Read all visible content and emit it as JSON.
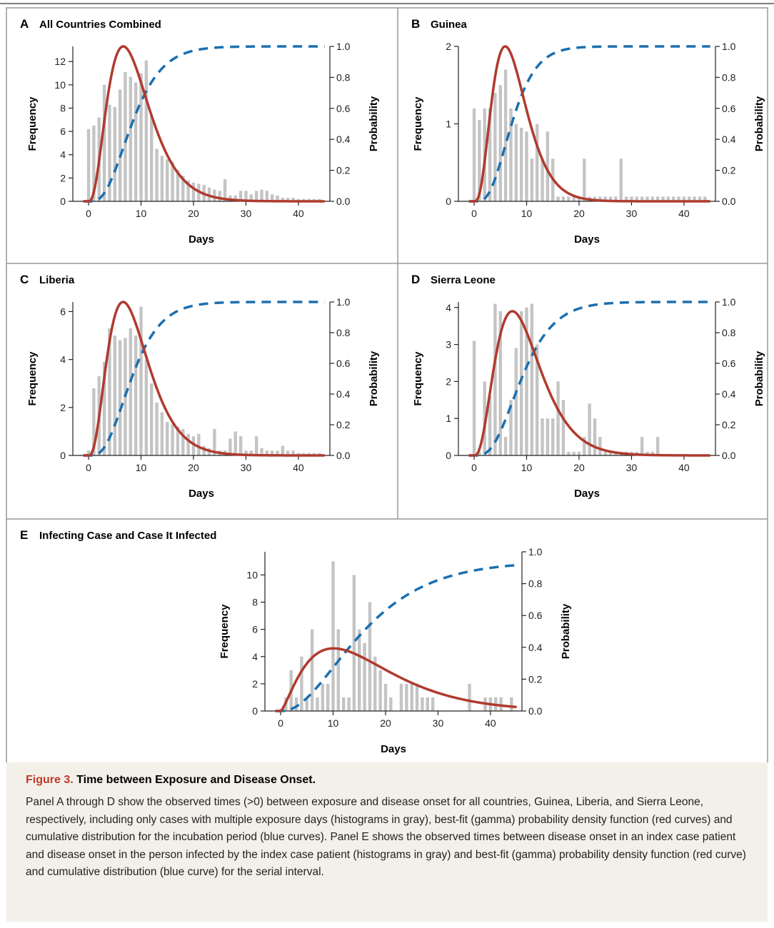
{
  "figure": {
    "label": "Figure 3.",
    "title": "Time between Exposure and Disease Onset.",
    "caption": "Panel A through D show the observed times (>0) between exposure and disease onset for all countries, Guinea, Liberia, and Sierra Leone, respectively, including only cases with multiple exposure days (histograms in gray), best-fit (gamma) probability density function (red curves) and cumulative distribution for the incubation period (blue curves). Panel E shows the observed times between disease onset in an index case patient and disease onset in the person infected by the index case patient (histograms in gray) and best-fit (gamma) probability density function (red curve) and cumulative distribution (blue curve) for the serial interval."
  },
  "colors": {
    "bars": "#c4c4c4",
    "pdf_curve": "#b03a2e",
    "cdf_curve": "#1b6fb0",
    "caption_label": "#c0392b",
    "caption_bg": "#f3f0e9"
  },
  "chart_data": [
    {
      "panel": "A",
      "title": "All Countries Combined",
      "type": "bar",
      "xlabel": "Days",
      "ylabel": "Frequency",
      "ylabel_right": "Probability",
      "xlim": [
        -3,
        46
      ],
      "ylim": [
        0,
        13.3
      ],
      "xticks": [
        0,
        10,
        20,
        30,
        40
      ],
      "yticks": [
        0,
        2,
        4,
        6,
        8,
        10,
        12
      ],
      "yticks_right": [
        "0.0",
        "0.2",
        "0.4",
        "0.6",
        "0.8",
        "1.0"
      ],
      "x": [
        0,
        1,
        2,
        3,
        4,
        5,
        6,
        7,
        8,
        9,
        10,
        11,
        12,
        13,
        14,
        15,
        16,
        17,
        18,
        19,
        20,
        21,
        22,
        23,
        24,
        25,
        26,
        27,
        28,
        29,
        30,
        31,
        32,
        33,
        34,
        35,
        36,
        37,
        38,
        39,
        40,
        41,
        42,
        43,
        44
      ],
      "values": [
        6.2,
        6.5,
        7.2,
        10.0,
        8.3,
        8.1,
        9.6,
        11.1,
        10.7,
        10.2,
        11.0,
        12.1,
        7.3,
        4.5,
        3.9,
        3.6,
        3.4,
        2.7,
        2.2,
        1.8,
        1.6,
        1.5,
        1.4,
        1.2,
        1.0,
        0.9,
        1.9,
        0.5,
        0.5,
        0.9,
        0.9,
        0.6,
        0.9,
        1.0,
        0.9,
        0.6,
        0.5,
        0.3,
        0.3,
        0.3,
        0.2,
        0.2,
        0.2,
        0.2,
        0.2
      ],
      "pdf": {
        "shape": 3.7,
        "scale": 2.45,
        "peak": 13.3
      },
      "cdf_max": 1.0
    },
    {
      "panel": "B",
      "title": "Guinea",
      "type": "bar",
      "xlabel": "Days",
      "ylabel": "Frequency",
      "ylabel_right": "Probability",
      "xlim": [
        -3,
        46
      ],
      "ylim": [
        0,
        2
      ],
      "xticks": [
        0,
        10,
        20,
        30,
        40
      ],
      "yticks": [
        0,
        1,
        2
      ],
      "yticks_right": [
        "0.0",
        "0.2",
        "0.4",
        "0.6",
        "0.8",
        "1.0"
      ],
      "x": [
        0,
        1,
        2,
        3,
        4,
        5,
        6,
        7,
        8,
        9,
        10,
        11,
        12,
        13,
        14,
        15,
        16,
        17,
        18,
        19,
        20,
        21,
        22,
        23,
        24,
        25,
        26,
        27,
        28,
        29,
        30,
        31,
        32,
        33,
        34,
        35,
        36,
        37,
        38,
        39,
        40,
        41,
        42,
        43,
        44
      ],
      "values": [
        1.2,
        1.05,
        1.2,
        1.2,
        1.4,
        1.5,
        1.7,
        1.2,
        1.0,
        0.95,
        0.9,
        0.55,
        1.0,
        0.55,
        0.9,
        0.55,
        0.06,
        0.06,
        0.06,
        0.06,
        0.06,
        0.55,
        0.06,
        0.06,
        0.06,
        0.06,
        0.06,
        0.06,
        0.55,
        0.06,
        0.06,
        0.06,
        0.06,
        0.06,
        0.06,
        0.06,
        0.06,
        0.06,
        0.06,
        0.06,
        0.06,
        0.06,
        0.06,
        0.06,
        0.06
      ],
      "pdf": {
        "shape": 4.2,
        "scale": 1.85,
        "peak": 2.0
      },
      "cdf_max": 1.0
    },
    {
      "panel": "C",
      "title": "Liberia",
      "type": "bar",
      "xlabel": "Days",
      "ylabel": "Frequency",
      "ylabel_right": "Probability",
      "xlim": [
        -3,
        46
      ],
      "ylim": [
        0,
        6.4
      ],
      "xticks": [
        0,
        10,
        20,
        30,
        40
      ],
      "yticks": [
        0,
        2,
        4,
        6
      ],
      "yticks_right": [
        "0.0",
        "0.2",
        "0.4",
        "0.6",
        "0.8",
        "1.0"
      ],
      "x": [
        0,
        1,
        2,
        3,
        4,
        5,
        6,
        7,
        8,
        9,
        10,
        11,
        12,
        13,
        14,
        15,
        16,
        17,
        18,
        19,
        20,
        21,
        22,
        23,
        24,
        25,
        26,
        27,
        28,
        29,
        30,
        31,
        32,
        33,
        34,
        35,
        36,
        37,
        38,
        39,
        40,
        41,
        42,
        43,
        44
      ],
      "values": [
        0.2,
        2.8,
        3.3,
        3.9,
        5.3,
        5.0,
        4.8,
        4.9,
        5.3,
        5.0,
        6.2,
        4.0,
        3.0,
        2.2,
        1.8,
        1.4,
        1.3,
        1.2,
        1.1,
        0.9,
        0.8,
        0.9,
        0.4,
        0.3,
        1.1,
        0.2,
        0.2,
        0.7,
        1.0,
        0.8,
        0.2,
        0.2,
        0.8,
        0.3,
        0.2,
        0.2,
        0.2,
        0.4,
        0.2,
        0.2,
        0.1,
        0.1,
        0.1,
        0.1,
        0.1
      ],
      "pdf": {
        "shape": 3.8,
        "scale": 2.35,
        "peak": 6.4
      },
      "cdf_max": 1.0
    },
    {
      "panel": "D",
      "title": "Sierra Leone",
      "type": "bar",
      "xlabel": "Days",
      "ylabel": "Frequency",
      "ylabel_right": "Probability",
      "xlim": [
        -3,
        46
      ],
      "ylim": [
        0,
        4.15
      ],
      "xticks": [
        0,
        10,
        20,
        30,
        40
      ],
      "yticks": [
        0,
        1,
        2,
        3,
        4
      ],
      "yticks_right": [
        "0.0",
        "0.2",
        "0.4",
        "0.6",
        "0.8",
        "1.0"
      ],
      "x": [
        0,
        1,
        2,
        3,
        4,
        5,
        6,
        7,
        8,
        9,
        10,
        11,
        12,
        13,
        14,
        15,
        16,
        17,
        18,
        19,
        20,
        21,
        22,
        23,
        24,
        25,
        26,
        27,
        28,
        29,
        30,
        31,
        32,
        33,
        34,
        35
      ],
      "values": [
        3.1,
        0.1,
        2.0,
        1.6,
        4.1,
        3.9,
        0.5,
        1.5,
        2.9,
        3.9,
        4.0,
        4.1,
        3.0,
        1.0,
        1.0,
        1.0,
        2.0,
        1.5,
        0.1,
        0.1,
        0.1,
        0.5,
        1.4,
        1.0,
        0.5,
        0.1,
        0.1,
        0.1,
        0.1,
        0.1,
        0.1,
        0.1,
        0.5,
        0.1,
        0.1,
        0.5
      ],
      "pdf": {
        "shape": 3.8,
        "scale": 2.6,
        "peak": 3.9
      },
      "cdf_max": 1.0
    },
    {
      "panel": "E",
      "title": "Infecting Case and Case It Infected",
      "type": "bar",
      "xlabel": "Days",
      "ylabel": "Frequency",
      "ylabel_right": "Probability",
      "xlim": [
        -3,
        46
      ],
      "ylim": [
        0,
        11.7
      ],
      "xticks": [
        0,
        10,
        20,
        30,
        40
      ],
      "yticks": [
        0,
        2,
        4,
        6,
        8,
        10
      ],
      "yticks_right": [
        "0.0",
        "0.2",
        "0.4",
        "0.6",
        "0.8",
        "1.0"
      ],
      "x": [
        1,
        2,
        3,
        4,
        5,
        6,
        7,
        8,
        9,
        10,
        11,
        12,
        13,
        14,
        15,
        16,
        17,
        18,
        19,
        20,
        21,
        22,
        23,
        24,
        25,
        26,
        27,
        28,
        29,
        30,
        31,
        32,
        33,
        34,
        35,
        36,
        37,
        38,
        39,
        40,
        41,
        42,
        43,
        44
      ],
      "values": [
        1,
        3,
        1,
        4,
        1,
        6,
        1,
        2,
        2,
        11,
        6,
        1,
        1,
        10,
        6,
        5,
        8,
        4,
        3,
        2,
        1,
        0,
        2,
        2,
        2,
        2,
        1,
        1,
        1,
        0,
        0,
        0,
        0,
        0,
        0,
        2,
        0,
        0,
        1,
        1,
        1,
        1,
        0,
        1
      ],
      "pdf": {
        "shape": 2.4,
        "scale": 7.2,
        "peak": 4.6
      },
      "cdf_max": 0.94
    }
  ]
}
